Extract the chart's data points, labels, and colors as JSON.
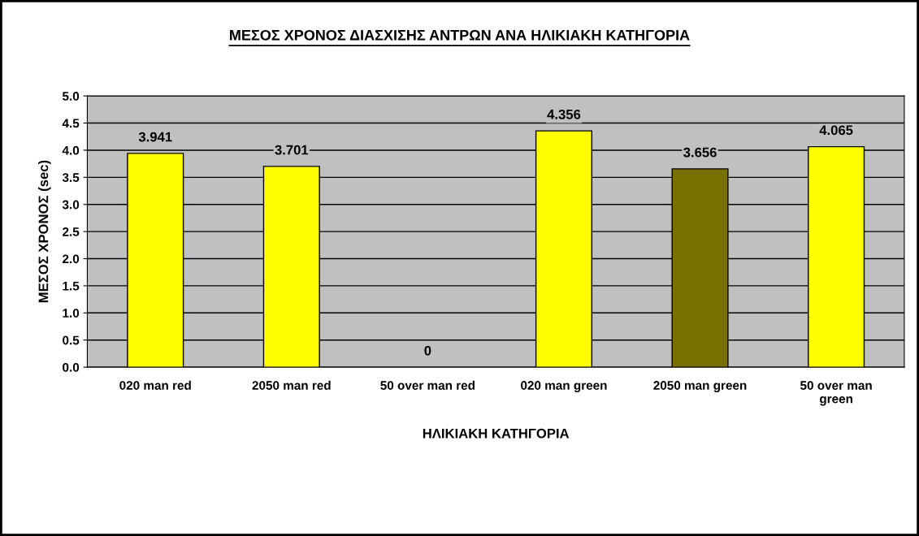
{
  "chart_data": {
    "type": "bar",
    "title": "ΜΕΣΟΣ ΧΡΟΝΟΣ ΔΙΑΣΧΙΣΗΣ ΑΝΤΡΩΝ ΑΝΑ ΗΛΙΚΙΑΚΗ ΚΑΤΗΓΟΡΙΑ",
    "xlabel": "ΗΛΙΚΙΑΚΗ ΚΑΤΗΓΟΡΙΑ",
    "ylabel": "ΜΕΣΟΣ ΧΡΟΝΟΣ (sec)",
    "categories": [
      "020 man red",
      "2050 man red",
      "50 over man red",
      "020 man green",
      "2050 man green",
      "50 over man green"
    ],
    "values": [
      3.941,
      3.701,
      0,
      4.356,
      3.656,
      4.065
    ],
    "colors": [
      "#ffff00",
      "#ffff00",
      "#ffff00",
      "#ffff00",
      "#7a7000",
      "#ffff00"
    ],
    "ylim": [
      0,
      5
    ],
    "yticks": [
      {
        "value": 0,
        "label": "0.0"
      },
      {
        "value": 0.5,
        "label": "0.5"
      },
      {
        "value": 1,
        "label": "1.0"
      },
      {
        "value": 1.5,
        "label": "1.5"
      },
      {
        "value": 2,
        "label": "2.0"
      },
      {
        "value": 2.5,
        "label": "2.5"
      },
      {
        "value": 3,
        "label": "3.0"
      },
      {
        "value": 3.5,
        "label": "3.5"
      },
      {
        "value": 4,
        "label": "4.0"
      },
      {
        "value": 4.5,
        "label": "4.5"
      },
      {
        "value": 5,
        "label": "5.0"
      }
    ],
    "grid": "y",
    "data_labels": true,
    "legend": false
  }
}
